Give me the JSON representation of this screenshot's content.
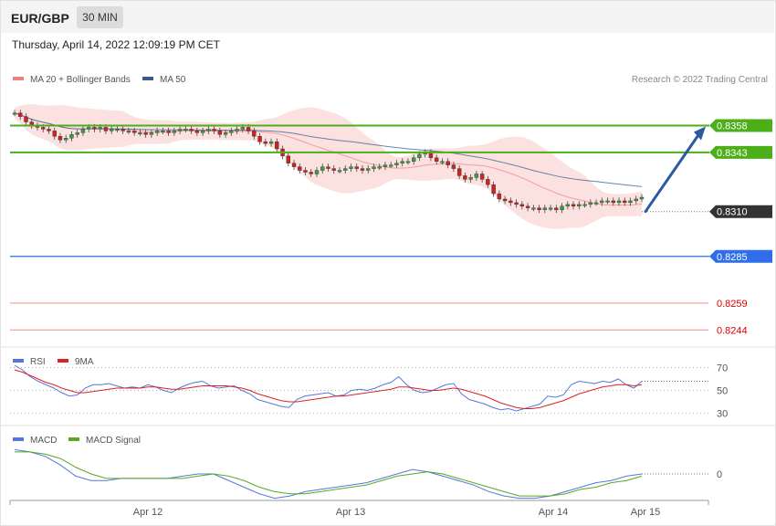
{
  "header": {
    "pair": "EUR/GBP",
    "timeframe": "30 MIN"
  },
  "date_line": "Thursday, April 14, 2022 12:09:19 PM CET",
  "credit": "Research © 2022 Trading Central",
  "colors": {
    "resistance": "#4caf1a",
    "support": "#2f6ee8",
    "red_level": "#e64545",
    "current": "#333333",
    "arrow": "#2a5aa0",
    "ma20": "#f08080",
    "ma50": "#3a5a90",
    "rsi": "#5577dd",
    "rsi_ma": "#dd2222",
    "macd": "#5577dd",
    "macd_signal": "#55aa22"
  },
  "chart_data": [
    {
      "type": "candlestick",
      "title": "",
      "legend": [
        {
          "name": "MA 20 + Bollinger Bands",
          "color": "#f08080"
        },
        {
          "name": "MA 50",
          "color": "#3a5a90"
        }
      ],
      "x_ticks": [
        "Apr 12",
        "Apr 13",
        "Apr 14",
        "Apr 15"
      ],
      "ylim": [
        0.8237,
        0.8372
      ],
      "levels": [
        {
          "value": 0.8358,
          "label": "0.8358",
          "kind": "resistance"
        },
        {
          "value": 0.8343,
          "label": "0.8343",
          "kind": "resistance"
        },
        {
          "value": 0.831,
          "label": "0.8310",
          "kind": "current"
        },
        {
          "value": 0.8285,
          "label": "0.8285",
          "kind": "support"
        },
        {
          "value": 0.8259,
          "label": "0.8259",
          "kind": "red"
        },
        {
          "value": 0.8244,
          "label": "0.8244",
          "kind": "red"
        }
      ],
      "projection": {
        "from": 0.831,
        "to": 0.8358
      },
      "closes": [
        0.8365,
        0.8363,
        0.836,
        0.8358,
        0.8357,
        0.8356,
        0.8355,
        0.8352,
        0.835,
        0.8351,
        0.8353,
        0.8354,
        0.8356,
        0.8357,
        0.8356,
        0.8357,
        0.8355,
        0.8356,
        0.8356,
        0.8355,
        0.8355,
        0.8354,
        0.8354,
        0.8353,
        0.8354,
        0.8355,
        0.8355,
        0.8354,
        0.8355,
        0.8356,
        0.8356,
        0.8355,
        0.8354,
        0.8355,
        0.8356,
        0.8355,
        0.8353,
        0.8354,
        0.8355,
        0.8356,
        0.8357,
        0.8355,
        0.8352,
        0.8349,
        0.8348,
        0.8349,
        0.8345,
        0.8341,
        0.8337,
        0.8335,
        0.8333,
        0.8332,
        0.8331,
        0.8333,
        0.8335,
        0.8334,
        0.8333,
        0.8333,
        0.8334,
        0.8335,
        0.8334,
        0.8333,
        0.8334,
        0.8335,
        0.8335,
        0.8336,
        0.8336,
        0.8337,
        0.8338,
        0.8338,
        0.834,
        0.8342,
        0.8343,
        0.834,
        0.8338,
        0.8338,
        0.8336,
        0.8334,
        0.833,
        0.8328,
        0.8329,
        0.8331,
        0.8328,
        0.8325,
        0.832,
        0.8317,
        0.8316,
        0.8315,
        0.8314,
        0.8313,
        0.8312,
        0.8312,
        0.8311,
        0.8312,
        0.8312,
        0.8311,
        0.8313,
        0.8314,
        0.8313,
        0.8314,
        0.8314,
        0.8315,
        0.8315,
        0.8316,
        0.8316,
        0.8315,
        0.8316,
        0.8315,
        0.8316,
        0.8317,
        0.8318
      ]
    },
    {
      "type": "line",
      "title": "",
      "legend": [
        {
          "name": "RSI",
          "color": "#5577dd"
        },
        {
          "name": "9MA",
          "color": "#dd2222"
        }
      ],
      "ylim": [
        20,
        80
      ],
      "y_ticks": [
        {
          "value": 70,
          "label": "70"
        },
        {
          "value": 50,
          "label": "50"
        },
        {
          "value": 30,
          "label": "30"
        }
      ],
      "series": [
        {
          "name": "RSI",
          "values": [
            72,
            68,
            62,
            58,
            55,
            52,
            48,
            45,
            46,
            52,
            55,
            55,
            56,
            54,
            52,
            53,
            52,
            55,
            53,
            50,
            48,
            52,
            55,
            57,
            58,
            54,
            52,
            53,
            54,
            50,
            47,
            42,
            40,
            38,
            36,
            35,
            42,
            45,
            46,
            47,
            48,
            45,
            46,
            50,
            51,
            50,
            52,
            55,
            57,
            62,
            55,
            50,
            48,
            49,
            52,
            55,
            56,
            47,
            42,
            40,
            38,
            35,
            33,
            34,
            32,
            34,
            36,
            38,
            45,
            44,
            46,
            55,
            58,
            57,
            56,
            58,
            57,
            60,
            55,
            52,
            58
          ]
        },
        {
          "name": "9MA",
          "values": [
            68,
            66,
            63,
            60,
            57,
            55,
            52,
            50,
            48,
            48,
            49,
            50,
            51,
            52,
            52,
            52,
            52,
            53,
            53,
            52,
            51,
            51,
            52,
            53,
            54,
            54,
            54,
            54,
            53,
            52,
            50,
            47,
            45,
            43,
            41,
            40,
            40,
            41,
            42,
            43,
            44,
            45,
            45,
            46,
            47,
            48,
            49,
            50,
            51,
            53,
            53,
            52,
            51,
            50,
            50,
            51,
            52,
            51,
            49,
            47,
            45,
            42,
            39,
            37,
            35,
            34,
            34,
            35,
            37,
            39,
            41,
            44,
            47,
            49,
            51,
            53,
            54,
            55,
            55,
            54,
            55
          ]
        }
      ]
    },
    {
      "type": "line",
      "title": "",
      "legend": [
        {
          "name": "MACD",
          "color": "#5577dd"
        },
        {
          "name": "MACD Signal",
          "color": "#55aa22"
        }
      ],
      "ylim": [
        -0.0012,
        0.0012
      ],
      "y_ticks": [
        {
          "value": 0,
          "label": "0"
        }
      ],
      "series": [
        {
          "name": "MACD",
          "values": [
            0.0011,
            0.001,
            0.0008,
            0.0004,
            -0.0001,
            -0.0003,
            -0.0003,
            -0.0002,
            -0.0002,
            -0.0002,
            -0.0002,
            -0.0001,
            0.0,
            0.0,
            -0.0003,
            -0.0006,
            -0.0009,
            -0.0011,
            -0.001,
            -0.0008,
            -0.0007,
            -0.0006,
            -0.0005,
            -0.0004,
            -0.0002,
            0.0,
            0.0002,
            0.0001,
            -0.0001,
            -0.0003,
            -0.0005,
            -0.0008,
            -0.001,
            -0.0011,
            -0.0011,
            -0.001,
            -0.0008,
            -0.0006,
            -0.0004,
            -0.0003,
            -0.0001,
            0.0
          ]
        },
        {
          "name": "MACD Signal",
          "values": [
            0.001,
            0.001,
            0.0009,
            0.0007,
            0.0003,
            0.0,
            -0.0002,
            -0.0002,
            -0.0002,
            -0.0002,
            -0.0002,
            -0.0002,
            -0.0001,
            0.0,
            -0.0001,
            -0.0003,
            -0.0006,
            -0.0008,
            -0.0009,
            -0.0009,
            -0.0008,
            -0.0007,
            -0.0006,
            -0.0005,
            -0.0003,
            -0.0001,
            0.0,
            0.0001,
            0.0,
            -0.0002,
            -0.0004,
            -0.0006,
            -0.0008,
            -0.001,
            -0.001,
            -0.001,
            -0.0009,
            -0.0007,
            -0.0006,
            -0.0004,
            -0.0003,
            -0.0001
          ]
        }
      ]
    }
  ]
}
